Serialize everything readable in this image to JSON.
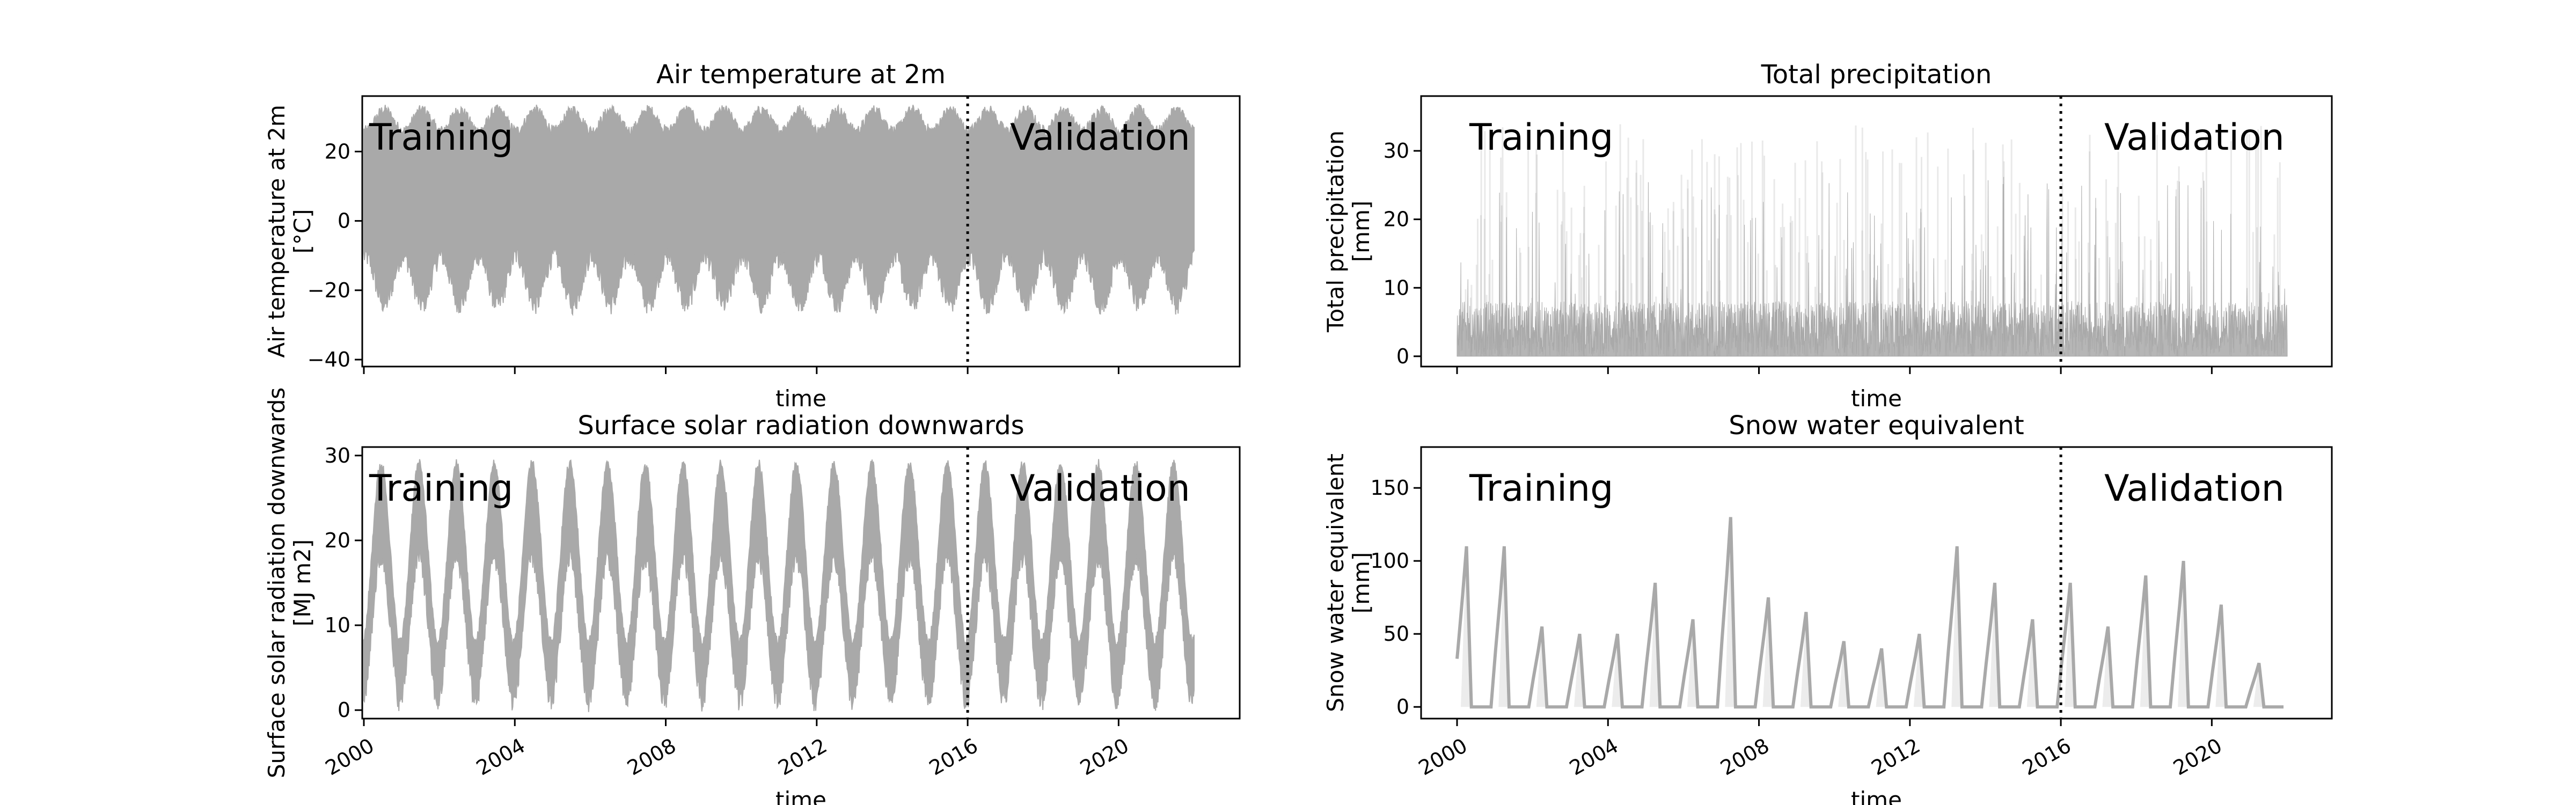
{
  "chart_data": [
    {
      "type": "area",
      "title": "Air temperature at 2m",
      "xlabel": "time",
      "ylabel": [
        "Air temperature at 2m",
        "[°C]"
      ],
      "xlim": [
        "2000-01-01",
        "2022-01-01"
      ],
      "ylim": [
        -42,
        36
      ],
      "yticks": [
        -40,
        -20,
        0,
        20
      ],
      "xticks": [
        "2000",
        "2004",
        "2008",
        "2012",
        "2016",
        "2020"
      ],
      "show_x_tick_labels": false,
      "split_date": "2016-01-01",
      "annotations": [
        "Training",
        "Validation"
      ],
      "series_color": "#a9a9a9",
      "series": [
        {
          "shape": "seasonal",
          "band_upper": [
            32,
            26
          ],
          "band_lower": [
            -24,
            -10
          ],
          "annual_peak_month": 7
        }
      ]
    },
    {
      "type": "area",
      "title": "Total precipitation",
      "xlabel": "time",
      "ylabel": [
        "Total precipitation",
        "[mm]"
      ],
      "xlim": [
        "2000-01-01",
        "2022-01-01"
      ],
      "ylim": [
        -1.5,
        38
      ],
      "yticks": [
        0,
        10,
        20,
        30
      ],
      "xticks": [
        "2000",
        "2004",
        "2008",
        "2012",
        "2016",
        "2020"
      ],
      "show_x_tick_labels": false,
      "split_date": "2016-01-01",
      "annotations": [
        "Training",
        "Validation"
      ],
      "series_color": "#a9a9a9",
      "series": [
        {
          "shape": "spiky",
          "typical_max": 8,
          "peak_max": 34
        }
      ]
    },
    {
      "type": "area",
      "title": "Surface solar radiation downwards",
      "xlabel": "time",
      "ylabel": [
        "Surface solar radiation downwards",
        "[MJ m2]"
      ],
      "xlim": [
        "2000-01-01",
        "2022-01-01"
      ],
      "ylim": [
        -1,
        31
      ],
      "yticks": [
        0,
        10,
        20,
        30
      ],
      "xticks": [
        "2000",
        "2004",
        "2008",
        "2012",
        "2016",
        "2020"
      ],
      "show_x_tick_labels": true,
      "split_date": "2016-01-01",
      "annotations": [
        "Training",
        "Validation"
      ],
      "series_color": "#a9a9a9",
      "series": [
        {
          "shape": "seasonal",
          "band_upper": [
            29,
            8
          ],
          "band_lower": [
            18,
            1
          ],
          "annual_peak_month": 6
        }
      ]
    },
    {
      "type": "area",
      "title": "Snow water equivalent",
      "xlabel": "time",
      "ylabel": [
        "Snow water equivalent",
        "[mm]"
      ],
      "xlim": [
        "2000-01-01",
        "2022-01-01"
      ],
      "ylim": [
        -8,
        178
      ],
      "yticks": [
        0,
        50,
        100,
        150
      ],
      "xticks": [
        "2000",
        "2004",
        "2008",
        "2012",
        "2016",
        "2020"
      ],
      "show_x_tick_labels": true,
      "split_date": "2016-01-01",
      "annotations": [
        "Training",
        "Validation"
      ],
      "series_color": "#a9a9a9",
      "series": [
        {
          "shape": "snow",
          "annual_peaks": [
            110,
            110,
            55,
            50,
            50,
            85,
            60,
            130,
            75,
            65,
            45,
            40,
            50,
            110,
            85,
            60,
            85,
            55,
            90,
            100,
            70,
            30
          ]
        }
      ]
    }
  ]
}
